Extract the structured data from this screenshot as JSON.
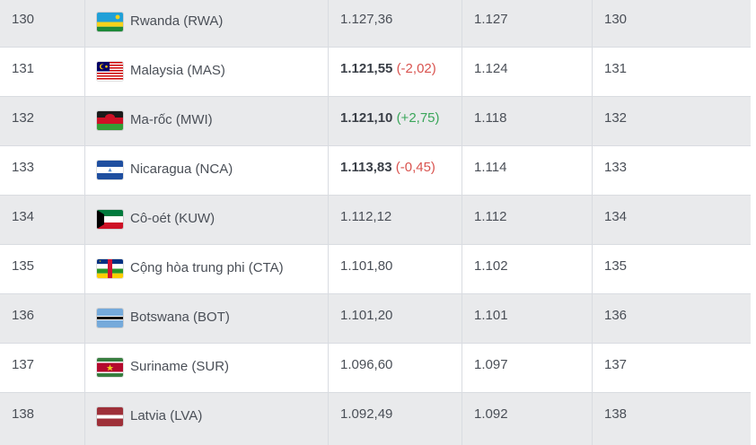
{
  "rows": [
    {
      "rank": "130",
      "team": "Rwanda (RWA)",
      "flag": "rwanda-flag-icon",
      "points": "1.127,36",
      "points_bold": false,
      "change": "",
      "change_dir": "",
      "prev_points": "1.127",
      "prev_rank": "130"
    },
    {
      "rank": "131",
      "team": "Malaysia (MAS)",
      "flag": "malaysia-flag-icon",
      "points": "1.121,55",
      "points_bold": true,
      "change": "(-2,02)",
      "change_dir": "down",
      "prev_points": "1.124",
      "prev_rank": "131"
    },
    {
      "rank": "132",
      "team": "Ma-rốc (MWI)",
      "flag": "malawi-flag-icon",
      "points": "1.121,10",
      "points_bold": true,
      "change": "(+2,75)",
      "change_dir": "up",
      "prev_points": "1.118",
      "prev_rank": "132"
    },
    {
      "rank": "133",
      "team": "Nicaragua (NCA)",
      "flag": "nicaragua-flag-icon",
      "points": "1.113,83",
      "points_bold": true,
      "change": "(-0,45)",
      "change_dir": "down",
      "prev_points": "1.114",
      "prev_rank": "133"
    },
    {
      "rank": "134",
      "team": "Cô-oét (KUW)",
      "flag": "kuwait-flag-icon",
      "points": "1.112,12",
      "points_bold": false,
      "change": "",
      "change_dir": "",
      "prev_points": "1.112",
      "prev_rank": "134"
    },
    {
      "rank": "135",
      "team": "Cộng hòa trung phi (CTA)",
      "flag": "central-african-republic-flag-icon",
      "points": "1.101,80",
      "points_bold": false,
      "change": "",
      "change_dir": "",
      "prev_points": "1.102",
      "prev_rank": "135"
    },
    {
      "rank": "136",
      "team": "Botswana (BOT)",
      "flag": "botswana-flag-icon",
      "points": "1.101,20",
      "points_bold": false,
      "change": "",
      "change_dir": "",
      "prev_points": "1.101",
      "prev_rank": "136"
    },
    {
      "rank": "137",
      "team": "Suriname (SUR)",
      "flag": "suriname-flag-icon",
      "points": "1.096,60",
      "points_bold": false,
      "change": "",
      "change_dir": "",
      "prev_points": "1.097",
      "prev_rank": "137"
    },
    {
      "rank": "138",
      "team": "Latvia (LVA)",
      "flag": "latvia-flag-icon",
      "points": "1.092,49",
      "points_bold": false,
      "change": "",
      "change_dir": "",
      "prev_points": "1.092",
      "prev_rank": "138"
    }
  ]
}
